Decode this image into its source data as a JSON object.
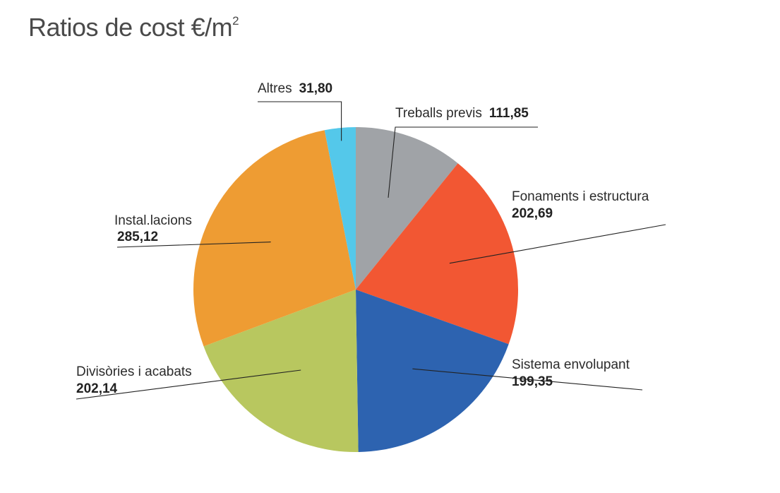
{
  "title": {
    "text": "Ratios de cost €/m",
    "superscript": "2"
  },
  "chart_data": {
    "type": "pie",
    "title": "Ratios de cost €/m²",
    "order": "clockwise from top",
    "slices": [
      {
        "label": "Treballs previs",
        "value": 111.85,
        "value_text": "111,85",
        "color": "#a0a3a7"
      },
      {
        "label": "Fonaments i estructura",
        "value": 202.69,
        "value_text": "202,69",
        "color": "#f25733"
      },
      {
        "label": "Sistema envolupant",
        "value": 199.35,
        "value_text": "199,35",
        "color": "#2d63b0"
      },
      {
        "label": "Divisòries i acabats",
        "value": 202.14,
        "value_text": "202,14",
        "color": "#b8c75f"
      },
      {
        "label": "Instal.lacions",
        "value": 285.12,
        "value_text": "285,12",
        "color": "#ee9c33"
      },
      {
        "label": "Altres",
        "value": 31.8,
        "value_text": "31,80",
        "color": "#54c8ea"
      }
    ]
  }
}
